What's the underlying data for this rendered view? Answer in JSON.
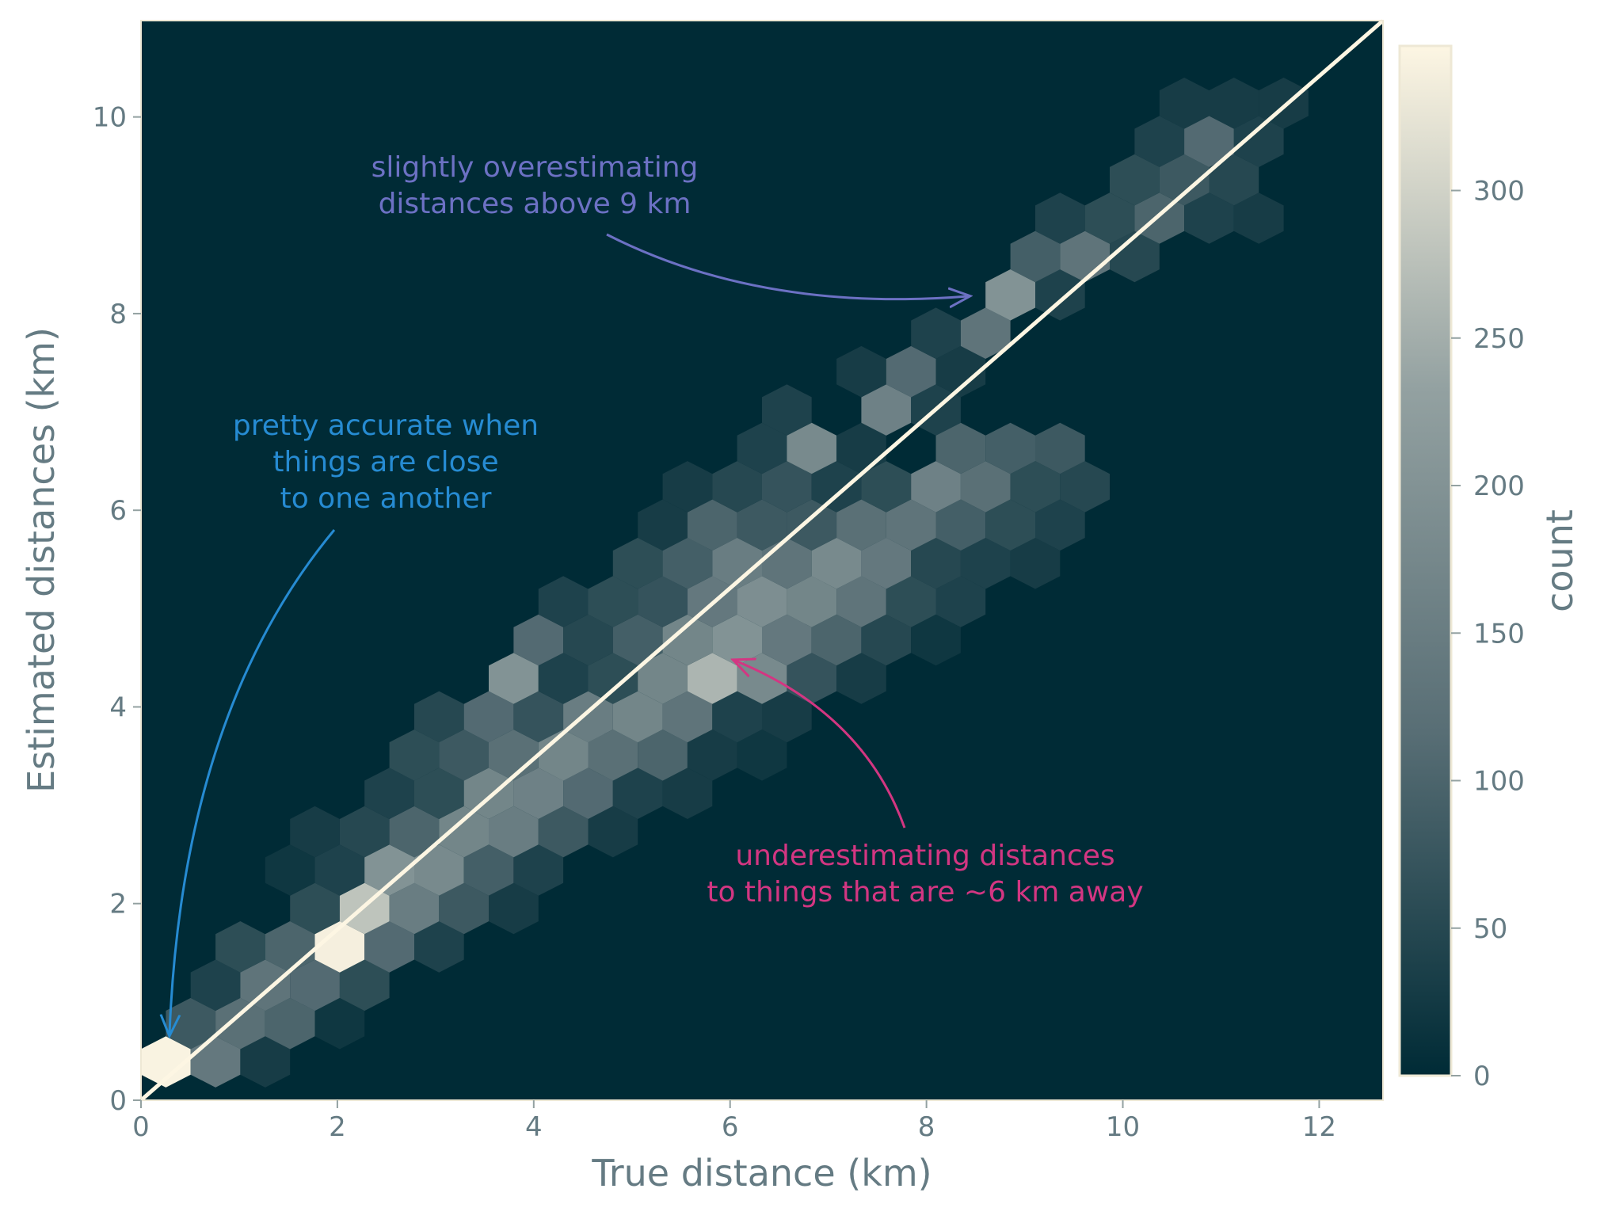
{
  "chart_data": {
    "type": "hexbin",
    "xlabel": "True distance (km)",
    "ylabel": "Estimated distances (km)",
    "xlim": [
      0,
      12.65
    ],
    "ylim": [
      0,
      10.98
    ],
    "xticks": [
      0,
      2,
      4,
      6,
      8,
      10,
      12
    ],
    "yticks": [
      0,
      2,
      4,
      6,
      8,
      10
    ],
    "gridsize": 25,
    "background": "#002b36",
    "colormap": [
      "#002b36",
      "#586e75",
      "#93a1a1",
      "#fdf6e3"
    ],
    "colorbar": {
      "label": "count",
      "lim": [
        0,
        349
      ],
      "ticks": [
        0,
        50,
        100,
        150,
        200,
        250,
        300
      ]
    },
    "x": [
      0.253,
      0.759,
      1.265,
      0.506,
      1.012,
      1.518,
      2.024,
      0.759,
      1.265,
      1.771,
      2.277,
      1.012,
      1.518,
      2.024,
      2.53,
      3.036,
      1.771,
      2.277,
      2.783,
      3.289,
      3.795,
      1.518,
      2.024,
      2.53,
      3.036,
      3.542,
      4.048,
      1.771,
      2.277,
      2.783,
      3.289,
      3.795,
      4.301,
      4.807,
      2.53,
      3.036,
      3.542,
      4.048,
      4.554,
      5.06,
      5.566,
      2.783,
      3.289,
      3.795,
      4.301,
      4.807,
      5.313,
      5.819,
      6.325,
      3.036,
      3.542,
      4.048,
      4.554,
      5.06,
      5.566,
      6.072,
      6.578,
      3.795,
      4.301,
      4.807,
      5.313,
      5.819,
      6.325,
      6.831,
      7.337,
      4.048,
      4.554,
      5.06,
      5.566,
      6.072,
      6.578,
      7.084,
      7.59,
      8.096,
      4.301,
      4.807,
      5.313,
      5.819,
      6.325,
      6.831,
      7.337,
      7.843,
      8.349,
      5.06,
      5.566,
      6.072,
      6.578,
      7.084,
      7.59,
      8.096,
      8.602,
      9.108,
      5.313,
      5.819,
      6.325,
      6.831,
      7.337,
      7.843,
      8.349,
      8.855,
      9.361,
      5.566,
      6.072,
      6.578,
      7.084,
      7.59,
      8.096,
      8.602,
      9.108,
      9.614,
      6.325,
      6.831,
      7.337,
      8.349,
      8.855,
      9.361,
      6.578,
      7.59,
      8.096,
      7.337,
      7.843,
      8.349,
      8.096,
      8.602,
      8.855,
      9.361,
      9.108,
      9.614,
      10.12,
      9.361,
      9.867,
      10.373,
      10.879,
      11.385,
      10.12,
      10.626,
      11.132,
      10.373,
      10.879,
      11.385,
      10.626,
      11.132,
      11.638
    ],
    "y": [
      0.39,
      0.39,
      0.39,
      0.78,
      0.78,
      0.78,
      0.78,
      1.17,
      1.17,
      1.17,
      1.17,
      1.56,
      1.56,
      1.56,
      1.56,
      1.56,
      1.95,
      1.95,
      1.95,
      1.95,
      1.95,
      2.34,
      2.34,
      2.34,
      2.34,
      2.34,
      2.34,
      2.73,
      2.73,
      2.73,
      2.73,
      2.73,
      2.73,
      2.73,
      3.12,
      3.12,
      3.12,
      3.12,
      3.12,
      3.12,
      3.12,
      3.51,
      3.51,
      3.51,
      3.51,
      3.51,
      3.51,
      3.51,
      3.51,
      3.9,
      3.9,
      3.9,
      3.9,
      3.9,
      3.9,
      3.9,
      3.9,
      4.29,
      4.29,
      4.29,
      4.29,
      4.29,
      4.29,
      4.29,
      4.29,
      4.68,
      4.68,
      4.68,
      4.68,
      4.68,
      4.68,
      4.68,
      4.68,
      4.68,
      5.07,
      5.07,
      5.07,
      5.07,
      5.07,
      5.07,
      5.07,
      5.07,
      5.07,
      5.46,
      5.46,
      5.46,
      5.46,
      5.46,
      5.46,
      5.46,
      5.46,
      5.46,
      5.85,
      5.85,
      5.85,
      5.85,
      5.85,
      5.85,
      5.85,
      5.85,
      5.85,
      6.24,
      6.24,
      6.24,
      6.24,
      6.24,
      6.24,
      6.24,
      6.24,
      6.24,
      6.63,
      6.63,
      6.63,
      6.63,
      6.63,
      6.63,
      7.02,
      7.02,
      7.02,
      7.41,
      7.41,
      7.41,
      7.8,
      7.8,
      8.19,
      8.19,
      8.58,
      8.58,
      8.58,
      8.97,
      8.97,
      8.97,
      8.97,
      8.97,
      9.36,
      9.36,
      9.36,
      9.75,
      9.75,
      9.75,
      10.14,
      10.14,
      10.14
    ],
    "values": [
      345,
      140,
      30,
      80,
      120,
      100,
      20,
      40,
      130,
      110,
      60,
      60,
      100,
      340,
      110,
      40,
      60,
      280,
      150,
      80,
      30,
      20,
      40,
      200,
      180,
      90,
      40,
      30,
      50,
      100,
      170,
      150,
      80,
      30,
      40,
      60,
      170,
      160,
      110,
      40,
      30,
      60,
      80,
      120,
      170,
      120,
      100,
      30,
      20,
      50,
      110,
      70,
      150,
      170,
      130,
      40,
      30,
      200,
      40,
      60,
      170,
      260,
      180,
      70,
      30,
      110,
      50,
      90,
      170,
      200,
      140,
      100,
      50,
      20,
      40,
      60,
      70,
      140,
      190,
      170,
      130,
      60,
      40,
      60,
      90,
      150,
      130,
      180,
      140,
      50,
      40,
      30,
      30,
      100,
      80,
      80,
      120,
      130,
      90,
      60,
      40,
      30,
      50,
      70,
      40,
      60,
      160,
      120,
      60,
      50,
      40,
      180,
      30,
      100,
      90,
      80,
      40,
      160,
      40,
      30,
      110,
      30,
      40,
      130,
      200,
      40,
      90,
      130,
      50,
      40,
      60,
      100,
      40,
      30,
      60,
      80,
      50,
      40,
      110,
      40,
      30,
      30,
      30
    ],
    "line": {
      "x": [
        0,
        12.65
      ],
      "y": [
        0,
        10.98
      ],
      "color": "#fdf6e3"
    },
    "annotations": [
      {
        "lines": [
          "slightly overestimating",
          "distances above 9 km"
        ],
        "color": "#6c71c4"
      },
      {
        "lines": [
          "pretty accurate when",
          "things are close",
          "to one another"
        ],
        "color": "#268bd2"
      },
      {
        "lines": [
          "underestimating distances",
          "to things that are ~6 km away"
        ],
        "color": "#d33682"
      }
    ]
  }
}
